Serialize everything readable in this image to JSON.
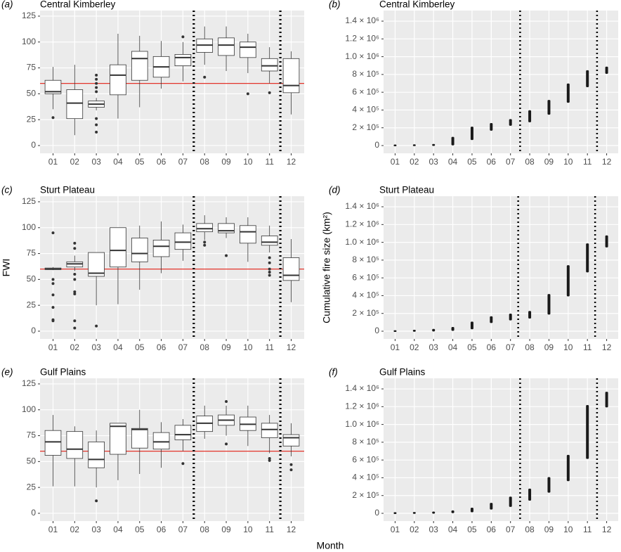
{
  "xlabel": "Month",
  "chart_data": [
    {
      "type": "box",
      "tag": "(a)",
      "title": "Central Kimberley",
      "categories": [
        "01",
        "02",
        "03",
        "04",
        "05",
        "06",
        "07",
        "08",
        "09",
        "10",
        "11",
        "12"
      ],
      "whisker_low": [
        35,
        10,
        34,
        26,
        37,
        55,
        62,
        78,
        72,
        70,
        60,
        30
      ],
      "q1": [
        50,
        26,
        37,
        49,
        63,
        66,
        77,
        90,
        87,
        85,
        72,
        51
      ],
      "median": [
        52,
        41,
        40,
        68,
        84,
        76,
        85,
        97,
        97,
        95,
        77,
        58
      ],
      "q3": [
        63,
        54,
        43,
        78,
        91,
        86,
        88,
        103,
        104,
        100,
        84,
        84
      ],
      "whisker_high": [
        76,
        78,
        46,
        108,
        106,
        101,
        100,
        115,
        115,
        108,
        95,
        91
      ],
      "outliers": [
        [
          27
        ],
        [],
        [
          13,
          20,
          26,
          52,
          56,
          60,
          64,
          68
        ],
        [],
        [],
        [],
        [
          105
        ],
        [
          66
        ],
        [],
        [
          50
        ],
        [
          51
        ],
        []
      ],
      "ylim": [
        -7.5,
        130.4
      ],
      "yticks": [
        0,
        25,
        50,
        75,
        100,
        125
      ],
      "hline": 60,
      "hline_color": "#e3342b",
      "vlines": [
        7.5,
        11.5
      ],
      "grid": true
    },
    {
      "type": "range",
      "tag": "(b)",
      "title": "Central Kimberley",
      "categories": [
        "01",
        "02",
        "03",
        "04",
        "05",
        "06",
        "07",
        "08",
        "09",
        "10",
        "11",
        "12"
      ],
      "low": [
        0,
        2000,
        4000,
        10000,
        70000,
        175000,
        230000,
        270000,
        355000,
        490000,
        665000,
        815000
      ],
      "high": [
        4000,
        6000,
        10000,
        90000,
        205000,
        245000,
        290000,
        390000,
        505000,
        690000,
        840000,
        880000
      ],
      "ylim": [
        -87000,
        1519000
      ],
      "yticks": [
        0,
        {
          "value": 200000,
          "label": "2 × 10⁵"
        },
        {
          "value": 400000,
          "label": "4 × 10⁵"
        },
        {
          "value": 600000,
          "label": "6 × 10⁵"
        },
        {
          "value": 800000,
          "label": "8 × 10⁵"
        },
        {
          "value": 1000000,
          "label": "1.0 × 10⁶"
        },
        {
          "value": 1200000,
          "label": "1.2 × 10⁶"
        },
        {
          "value": 1400000,
          "label": "1.4 × 10⁶"
        }
      ],
      "vlines": [
        7.5,
        11.5
      ],
      "grid": true
    },
    {
      "type": "box",
      "tag": "(c)",
      "title": "Sturt Plateau",
      "ylabel": "FWI",
      "categories": [
        "01",
        "02",
        "03",
        "04",
        "05",
        "06",
        "07",
        "08",
        "09",
        "10",
        "11",
        "12"
      ],
      "whisker_low": [
        59,
        58,
        25,
        26,
        40,
        56,
        68,
        88,
        90,
        67,
        76,
        28
      ],
      "q1": [
        59.5,
        62,
        53,
        62,
        67,
        72,
        79,
        96,
        95,
        85,
        83,
        49
      ],
      "median": [
        60,
        65,
        56,
        78,
        75,
        82,
        86,
        99,
        97,
        96,
        86,
        54
      ],
      "q3": [
        61,
        67,
        76,
        100,
        90,
        88,
        95,
        104,
        104,
        102,
        92,
        71
      ],
      "whisker_high": [
        62,
        73,
        76,
        100,
        102,
        106,
        103,
        112,
        110,
        110,
        102,
        89
      ],
      "outliers": [
        [
          95,
          50,
          46,
          35,
          23,
          11,
          10
        ],
        [
          85,
          80,
          55,
          50,
          38,
          36,
          10,
          3
        ],
        [
          5
        ],
        [],
        [],
        [],
        [],
        [
          83,
          86
        ],
        [
          73
        ],
        [],
        [
          54,
          57,
          60,
          66,
          71
        ],
        []
      ],
      "ylim": [
        -7.5,
        130.4
      ],
      "yticks": [
        0,
        25,
        50,
        75,
        100,
        125
      ],
      "hline": 60,
      "hline_color": "#e3342b",
      "vlines": [
        7.5,
        11.5
      ],
      "grid": true
    },
    {
      "type": "range",
      "tag": "(d)",
      "title": "Sturt Plateau",
      "ylabel": "Cumulative fire size (km²)",
      "categories": [
        "01",
        "02",
        "03",
        "04",
        "05",
        "06",
        "07",
        "08",
        "09",
        "10",
        "11",
        "12"
      ],
      "low": [
        0,
        2000,
        5000,
        12000,
        30000,
        100000,
        130000,
        150000,
        195000,
        400000,
        670000,
        950000
      ],
      "high": [
        3000,
        8000,
        18000,
        40000,
        100000,
        160000,
        190000,
        220000,
        410000,
        735000,
        980000,
        1070000
      ],
      "ylim": [
        -87000,
        1519000
      ],
      "yticks": [
        0,
        {
          "value": 200000,
          "label": "2 × 10⁵"
        },
        {
          "value": 400000,
          "label": "4 × 10⁵"
        },
        {
          "value": 600000,
          "label": "6 × 10⁵"
        },
        {
          "value": 800000,
          "label": "8 × 10⁵"
        },
        {
          "value": 1000000,
          "label": "1.0 × 10⁶"
        },
        {
          "value": 1200000,
          "label": "1.2 × 10⁶"
        },
        {
          "value": 1400000,
          "label": "1.4 × 10⁶"
        }
      ],
      "vlines": [
        7.4,
        11.4
      ],
      "grid": true
    },
    {
      "type": "box",
      "tag": "(e)",
      "title": "Gulf Plains",
      "categories": [
        "01",
        "02",
        "03",
        "04",
        "05",
        "06",
        "07",
        "08",
        "09",
        "10",
        "11",
        "12"
      ],
      "whisker_low": [
        26,
        26,
        25,
        32,
        38,
        44,
        60,
        72,
        75,
        65,
        58,
        55
      ],
      "q1": [
        56,
        53,
        44,
        57,
        63,
        62,
        71,
        79,
        85,
        80,
        73,
        65
      ],
      "median": [
        69,
        62,
        52,
        84,
        81,
        69,
        76,
        87,
        90,
        86,
        81,
        73
      ],
      "q3": [
        80,
        79,
        69,
        87,
        82,
        78,
        85,
        94,
        95,
        93,
        87,
        76
      ],
      "whisker_high": [
        95,
        84,
        80,
        87,
        100,
        88,
        91,
        104,
        104,
        104,
        95,
        87
      ],
      "outliers": [
        [],
        [],
        [
          12
        ],
        [],
        [],
        [],
        [
          48
        ],
        [],
        [
          67,
          108
        ],
        [],
        [
          51,
          53
        ],
        [
          42,
          47
        ]
      ],
      "ylim": [
        -7.5,
        130.4
      ],
      "yticks": [
        0,
        25,
        50,
        75,
        100,
        125
      ],
      "hline": 60,
      "hline_color": "#e3342b",
      "vlines": [
        7.5,
        11.5
      ],
      "grid": true
    },
    {
      "type": "range",
      "tag": "(f)",
      "title": "Gulf Plains",
      "categories": [
        "01",
        "02",
        "03",
        "04",
        "05",
        "06",
        "07",
        "08",
        "09",
        "10",
        "11",
        "12"
      ],
      "low": [
        0,
        2000,
        4000,
        10000,
        20000,
        50000,
        80000,
        150000,
        240000,
        370000,
        620000,
        1200000
      ],
      "high": [
        5000,
        7000,
        12000,
        25000,
        55000,
        110000,
        180000,
        270000,
        400000,
        650000,
        1210000,
        1360000
      ],
      "ylim": [
        -87000,
        1519000
      ],
      "yticks": [
        0,
        {
          "value": 200000,
          "label": "2 × 10⁵"
        },
        {
          "value": 400000,
          "label": "4 × 10⁵"
        },
        {
          "value": 600000,
          "label": "6 × 10⁵"
        },
        {
          "value": 800000,
          "label": "8 × 10⁵"
        },
        {
          "value": 1000000,
          "label": "1.0 × 10⁶"
        },
        {
          "value": 1200000,
          "label": "1.2 × 10⁶"
        },
        {
          "value": 1400000,
          "label": "1.4 × 10⁶"
        }
      ],
      "vlines": [
        7.5,
        11.5
      ],
      "grid": true
    }
  ]
}
